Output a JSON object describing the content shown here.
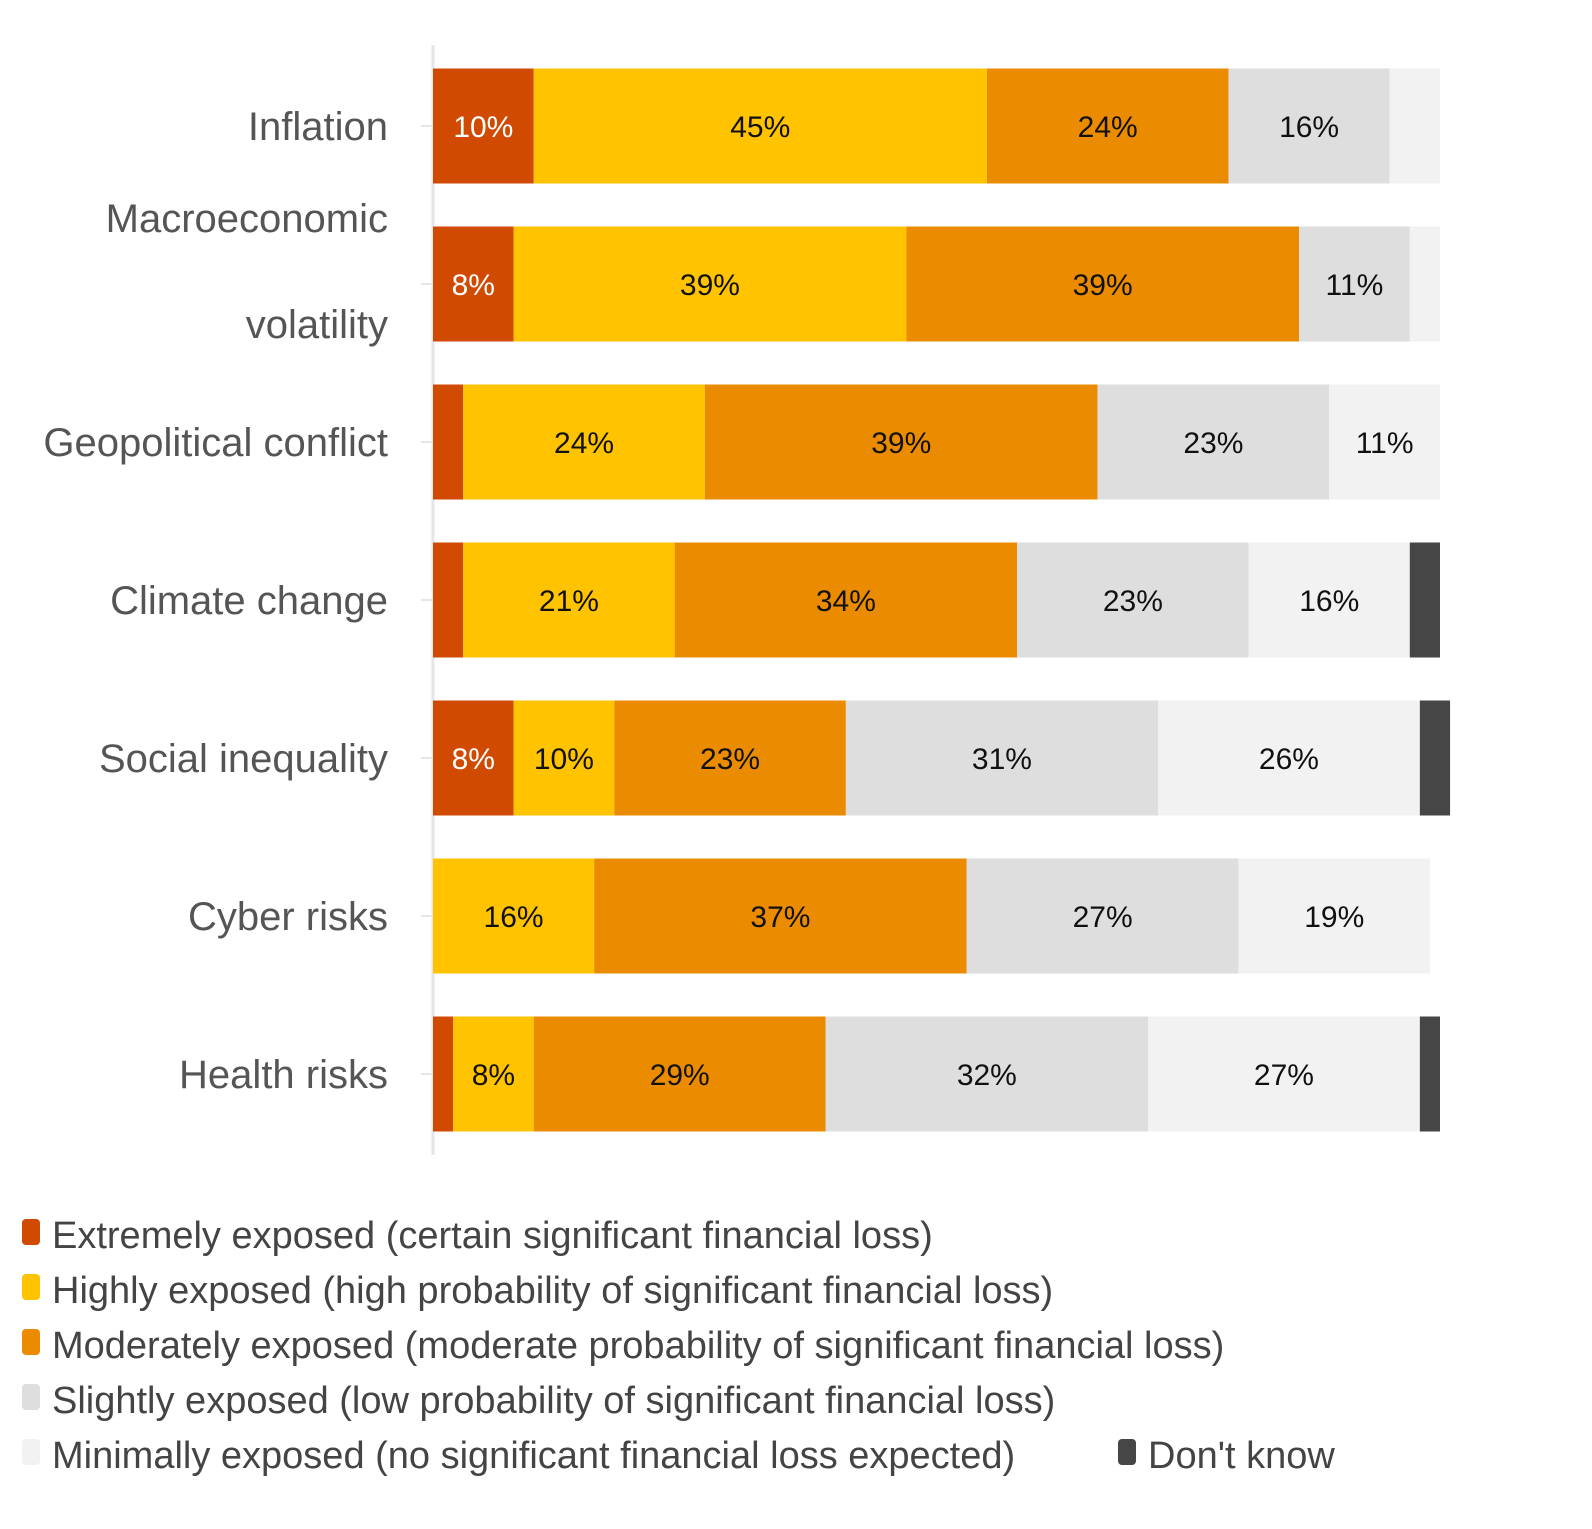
{
  "chart_data": {
    "type": "bar",
    "orientation": "horizontal",
    "stacked": true,
    "categories": [
      [
        "Inflation"
      ],
      [
        "Macroeconomic",
        "volatility"
      ],
      [
        "Geopolitical conflict"
      ],
      [
        "Climate change"
      ],
      [
        "Social inequality"
      ],
      [
        "Cyber risks"
      ],
      [
        "Health risks"
      ]
    ],
    "series": [
      {
        "name": "Extremely exposed (certain significant financial loss)",
        "color": "#D04A02",
        "values": [
          10,
          8,
          3,
          3,
          8,
          0,
          2
        ]
      },
      {
        "name": "Highly exposed (high probability of significant financial loss)",
        "color": "#FFC300",
        "values": [
          45,
          39,
          24,
          21,
          10,
          16,
          8
        ]
      },
      {
        "name": "Moderately exposed (moderate probability of significant financial loss)",
        "color": "#EB8C00",
        "values": [
          24,
          39,
          39,
          34,
          23,
          37,
          29
        ]
      },
      {
        "name": "Slightly exposed (low probability of significant financial loss)",
        "color": "#DEDEDE",
        "values": [
          16,
          11,
          23,
          23,
          31,
          27,
          32
        ]
      },
      {
        "name": "Minimally exposed (no significant financial loss expected)",
        "color": "#F2F2F2",
        "values": [
          5,
          3,
          11,
          16,
          26,
          19,
          27
        ]
      },
      {
        "name": "Don't know",
        "color": "#464646",
        "values": [
          0,
          0,
          0,
          3,
          3,
          0,
          2
        ]
      }
    ],
    "value_suffix": "%",
    "xlim": [
      0,
      100
    ],
    "grid": false,
    "legend_position": "bottom"
  }
}
